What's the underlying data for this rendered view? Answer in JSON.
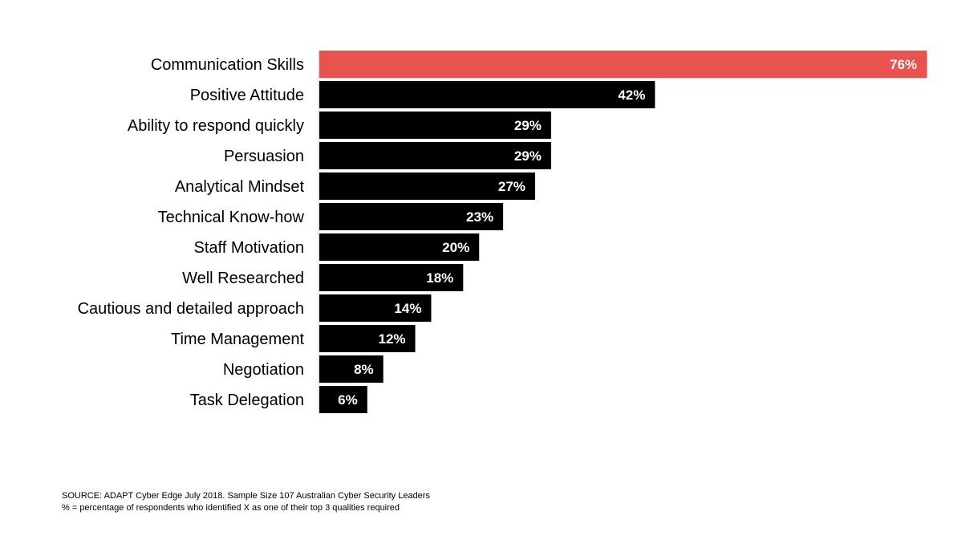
{
  "chart_data": {
    "type": "bar",
    "orientation": "horizontal",
    "categories": [
      "Communication Skills",
      "Positive Attitude",
      "Ability to respond quickly",
      "Persuasion",
      "Analytical Mindset",
      "Technical Know-how",
      "Staff Motivation",
      "Well Researched",
      "Cautious and detailed approach",
      "Time Management",
      "Negotiation",
      "Task Delegation"
    ],
    "values": [
      76,
      42,
      29,
      29,
      27,
      23,
      20,
      18,
      14,
      12,
      8,
      6
    ],
    "value_labels": [
      "76%",
      "42%",
      "29%",
      "29%",
      "27%",
      "23%",
      "20%",
      "18%",
      "14%",
      "12%",
      "8%",
      "6%"
    ],
    "unit": "%",
    "title": "",
    "xlabel": "",
    "ylabel": "",
    "xlim": [
      0,
      76
    ],
    "grid": false,
    "highlight_index": 0,
    "colors": {
      "highlight": "#e8524f",
      "bar": "#000000",
      "value_text": "#ffffff",
      "axis": "#cccccc"
    }
  },
  "source": {
    "line1": "SOURCE: ADAPT Cyber Edge July 2018. Sample Size 107 Australian Cyber Security Leaders",
    "line2": "% = percentage of respondents who identified X as one of their top 3 qualities required"
  }
}
